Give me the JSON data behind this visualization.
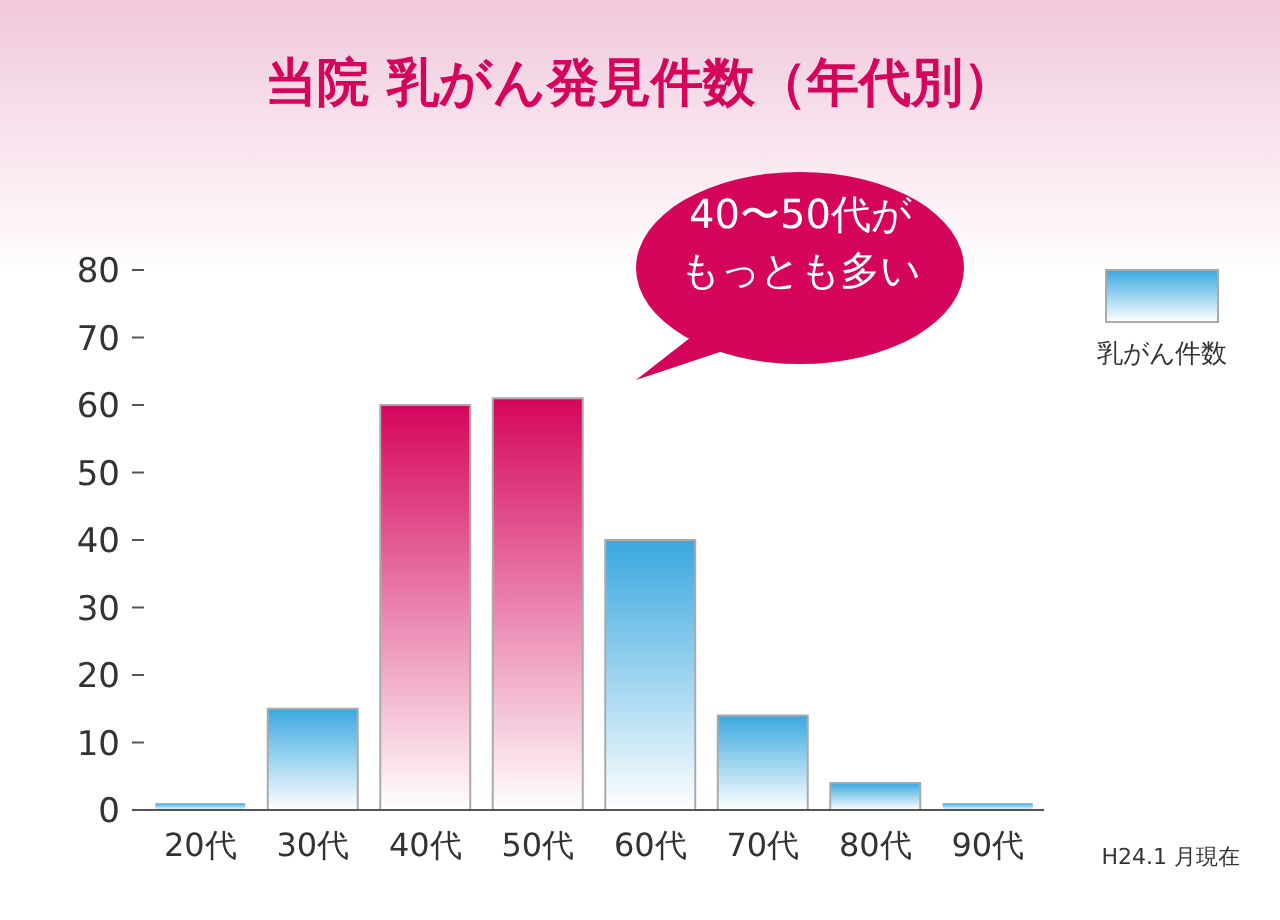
{
  "chart_data": {
    "type": "bar",
    "title": "当院 乳がん発見件数（年代別）",
    "categories": [
      "20代",
      "30代",
      "40代",
      "50代",
      "60代",
      "70代",
      "80代",
      "90代"
    ],
    "series": [
      {
        "name": "乳がん件数",
        "color": "#3aa8e0",
        "colors": [
          "#3aa8e0",
          "#3aa8e0",
          "#d5055b",
          "#d5055b",
          "#3aa8e0",
          "#3aa8e0",
          "#3aa8e0",
          "#3aa8e0"
        ],
        "values": [
          1,
          15,
          60,
          61,
          40,
          14,
          4,
          1
        ]
      }
    ],
    "ylim": [
      0,
      80
    ],
    "yticks": [
      0,
      10,
      20,
      30,
      40,
      50,
      60,
      70,
      80
    ],
    "grid": false,
    "legend": "top right",
    "annotations": [
      "40〜50代が",
      "もっとも多い",
      "H24.1 月現在"
    ]
  }
}
